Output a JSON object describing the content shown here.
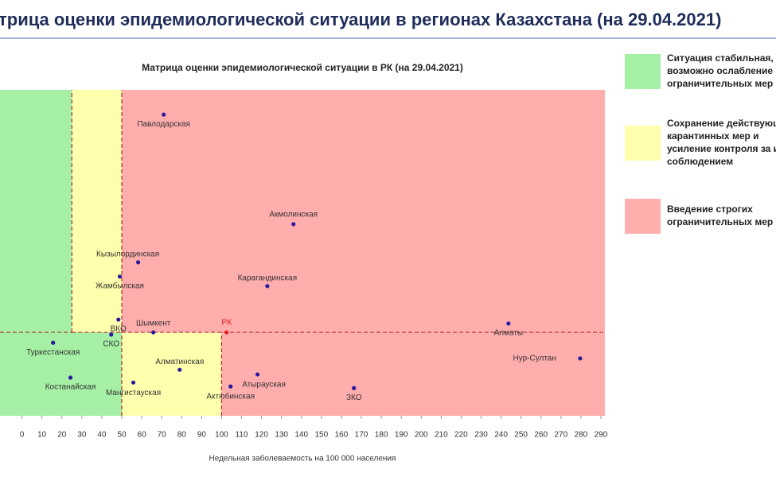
{
  "page_title": "трица оценки эпидемиологической ситуации в регионах Казахстана (на 29.04.2021)",
  "chart_data": {
    "type": "scatter",
    "title": "Матрица оценки эпидемиологической ситуации в РК (на 29.04.2021)",
    "x_label": "Недельная заболеваемость на 100 000 населения",
    "xlim": [
      -11,
      292
    ],
    "ylim": [
      0,
      100
    ],
    "xticks": [
      0,
      10,
      20,
      30,
      40,
      50,
      60,
      70,
      80,
      90,
      100,
      110,
      120,
      130,
      140,
      150,
      160,
      170,
      180,
      190,
      200,
      210,
      220,
      230,
      240,
      250,
      260,
      270,
      280,
      290
    ],
    "labels": [
      "Павлодарская",
      "Акмолинская",
      "Кызылординская",
      "Жамбылская",
      "Карагандинская",
      "ВКО",
      "Шымкент",
      "РК",
      "СКО",
      "Туркестанская",
      "Алматы",
      "Нур-Султан",
      "Алматинская",
      "Атырауская",
      "Костанайская",
      "Мангистауская",
      "Актюбинская",
      "ЗКО"
    ],
    "x": [
      71,
      136,
      58.2,
      49,
      122.9,
      48.3,
      65.8,
      102.5,
      44.7,
      15.6,
      243.7,
      279.6,
      79,
      118,
      24.3,
      55.8,
      104.5,
      166.3
    ],
    "values": [
      92.4,
      58.8,
      47.1,
      42.7,
      39.8,
      29.5,
      25.6,
      25.6,
      24.9,
      22.4,
      28.3,
      17.6,
      14.1,
      12.7,
      11.7,
      10.2,
      9,
      8.5
    ],
    "colors": [
      "#2a1a9e",
      "#2a1a9e",
      "#2a1a9e",
      "#2a1a9e",
      "#2a1a9e",
      "#2a1a9e",
      "#2a1a9e",
      "#e02020",
      "#2a1a9e",
      "#2a1a9e",
      "#2a1a9e",
      "#2a1a9e",
      "#2a1a9e",
      "#2a1a9e",
      "#2a1a9e",
      "#2a1a9e",
      "#2a1a9e",
      "#2a1a9e"
    ],
    "zones": [
      {
        "x0": -11,
        "x1": 25,
        "y0": 25.6,
        "y1": 100,
        "color": "#a6f0a6"
      },
      {
        "x0": 25,
        "x1": 50,
        "y0": 25.6,
        "y1": 100,
        "color": "#ffffad"
      },
      {
        "x0": 50,
        "x1": 292,
        "y0": 25.6,
        "y1": 100,
        "color": "#ffadad"
      },
      {
        "x0": -11,
        "x1": 50,
        "y0": 0,
        "y1": 25.6,
        "color": "#a6f0a6"
      },
      {
        "x0": 50,
        "x1": 100,
        "y0": 0,
        "y1": 25.6,
        "color": "#ffffad"
      },
      {
        "x0": 100,
        "x1": 292,
        "y0": 0,
        "y1": 25.6,
        "color": "#ffadad"
      }
    ],
    "legend": [
      {
        "color": "#a6f0a6",
        "lines": [
          "Ситуация стабильная,",
          "возможно ослабление",
          "ограничительных мер"
        ]
      },
      {
        "color": "#ffffad",
        "lines": [
          "Сохранение действующих",
          "карантинных мер и",
          "усиление контроля за их",
          "соблюдением"
        ]
      },
      {
        "color": "#ffadad",
        "lines": [
          "Введение строгих",
          "ограничительных мер"
        ]
      }
    ]
  }
}
